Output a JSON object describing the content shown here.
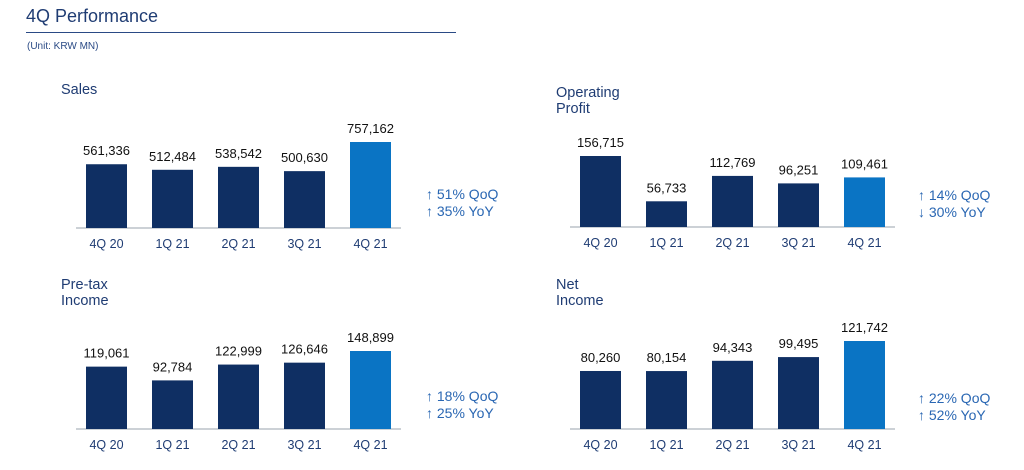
{
  "page": {
    "title": "4Q Performance",
    "unit": "(Unit: KRW MN)"
  },
  "colors": {
    "bar_default": "#0f2f63",
    "bar_highlight": "#0a74c4",
    "axis": "#9aa3ad",
    "title": "#1f3c73",
    "delta_text": "#2a67b3"
  },
  "chart_data": [
    {
      "type": "bar",
      "title": "Sales",
      "categories": [
        "4Q 20",
        "1Q 21",
        "2Q 21",
        "3Q 21",
        "4Q 21"
      ],
      "values": [
        561336,
        512484,
        538542,
        500630,
        757162
      ],
      "value_labels": [
        "561,336",
        "512,484",
        "538,542",
        "500,630",
        "757,162"
      ],
      "highlight_index": 4,
      "deltas": [
        "↑ 51% QoQ",
        "↑ 35% YoY"
      ]
    },
    {
      "type": "bar",
      "title": "Operating Profit",
      "categories": [
        "4Q 20",
        "1Q 21",
        "2Q 21",
        "3Q 21",
        "4Q 21"
      ],
      "values": [
        156715,
        56733,
        112769,
        96251,
        109461
      ],
      "value_labels": [
        "156,715",
        "56,733",
        "112,769",
        "96,251",
        "109,461"
      ],
      "highlight_index": 4,
      "deltas": [
        "↑ 14% QoQ",
        "↓ 30% YoY"
      ]
    },
    {
      "type": "bar",
      "title": "Pre-tax Income",
      "categories": [
        "4Q 20",
        "1Q 21",
        "2Q 21",
        "3Q 21",
        "4Q 21"
      ],
      "values": [
        119061,
        92784,
        122999,
        126646,
        148899
      ],
      "value_labels": [
        "119,061",
        "92,784",
        "122,999",
        "126,646",
        "148,899"
      ],
      "highlight_index": 4,
      "deltas": [
        "↑ 18% QoQ",
        "↑ 25% YoY"
      ]
    },
    {
      "type": "bar",
      "title": "Net Income",
      "categories": [
        "4Q 20",
        "1Q 21",
        "2Q 21",
        "3Q 21",
        "4Q 21"
      ],
      "values": [
        80260,
        80154,
        94343,
        99495,
        121742
      ],
      "value_labels": [
        "80,260",
        "80,154",
        "94,343",
        "99,495",
        "121,742"
      ],
      "highlight_index": 4,
      "deltas": [
        "↑ 22% QoQ",
        "↑ 52% YoY"
      ]
    }
  ]
}
